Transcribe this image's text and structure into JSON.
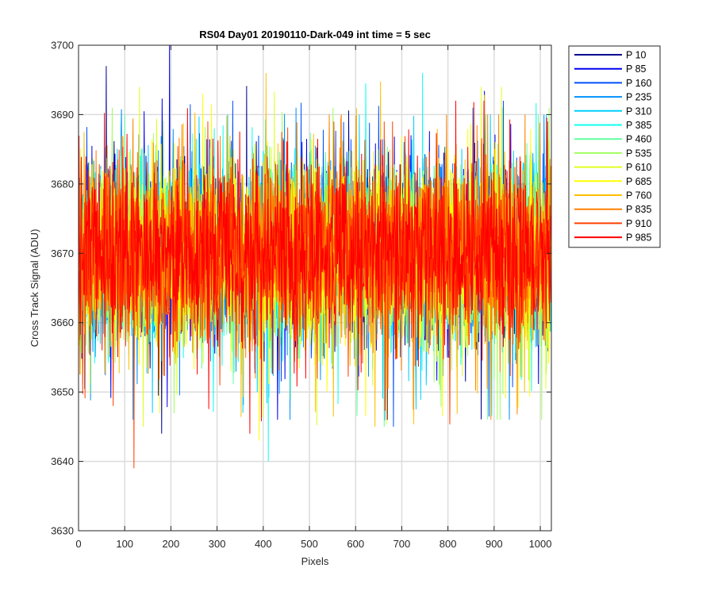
{
  "chart_data": {
    "type": "line",
    "title": "RS04 Day01 20190110-Dark-049 int time = 5 sec",
    "xlabel": "Pixels",
    "ylabel": "Cross Track Signal (ADU)",
    "xlim": [
      0,
      1024
    ],
    "ylim": [
      3630,
      3700
    ],
    "xticks": [
      0,
      100,
      200,
      300,
      400,
      500,
      600,
      700,
      800,
      900,
      1000
    ],
    "yticks": [
      3630,
      3640,
      3650,
      3660,
      3670,
      3680,
      3690,
      3700
    ],
    "grid": true,
    "legend_position": "outside-right",
    "n_points": 1024,
    "series_mean": 3670,
    "series_typical_range": [
      3655,
      3685
    ],
    "series": [
      {
        "name": "P 10",
        "color": "#00008f",
        "min": 3644,
        "max": 3697
      },
      {
        "name": "P 85",
        "color": "#0000ef",
        "min": 3646,
        "max": 3700
      },
      {
        "name": "P 160",
        "color": "#0050ff",
        "min": 3645,
        "max": 3692
      },
      {
        "name": "P 235",
        "color": "#0090ff",
        "min": 3646,
        "max": 3691
      },
      {
        "name": "P 310",
        "color": "#00cfff",
        "min": 3647,
        "max": 3690
      },
      {
        "name": "P 385",
        "color": "#10ffef",
        "min": 3640,
        "max": 3696
      },
      {
        "name": "P 460",
        "color": "#60ffa0",
        "min": 3645,
        "max": 3690
      },
      {
        "name": "P 535",
        "color": "#a0ff60",
        "min": 3646,
        "max": 3691
      },
      {
        "name": "P 610",
        "color": "#dfff20",
        "min": 3645,
        "max": 3694
      },
      {
        "name": "P 685",
        "color": "#ffff00",
        "min": 3643,
        "max": 3693
      },
      {
        "name": "P 760",
        "color": "#ffbf00",
        "min": 3645,
        "max": 3696
      },
      {
        "name": "P 835",
        "color": "#ff8000",
        "min": 3646,
        "max": 3690
      },
      {
        "name": "P 910",
        "color": "#ff4000",
        "min": 3639,
        "max": 3689
      },
      {
        "name": "P 985",
        "color": "#ff0000",
        "min": 3644,
        "max": 3692
      }
    ]
  }
}
